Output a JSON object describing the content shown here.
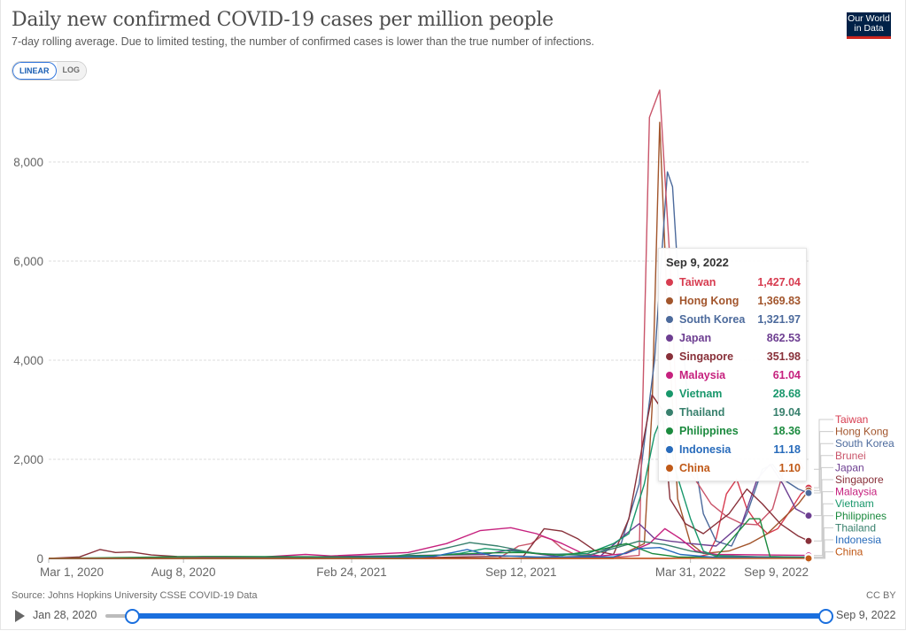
{
  "header": {
    "title": "Daily new confirmed COVID-19 cases per million people",
    "subtitle": "7-day rolling average. Due to limited testing, the number of confirmed cases is lower than the true number of infections.",
    "logo_line1": "Our World",
    "logo_line2": "in Data"
  },
  "scale_toggle": {
    "linear": "LINEAR",
    "log": "LOG",
    "selected": "LINEAR"
  },
  "tooltip": {
    "date": "Sep 9, 2022",
    "rows": [
      {
        "name": "Taiwan",
        "value": "1,427.04",
        "color": "#d73c50"
      },
      {
        "name": "Hong Kong",
        "value": "1,369.83",
        "color": "#a2552c"
      },
      {
        "name": "South Korea",
        "value": "1,321.97",
        "color": "#4c6a9c"
      },
      {
        "name": "Japan",
        "value": "862.53",
        "color": "#6d3e91"
      },
      {
        "name": "Singapore",
        "value": "351.98",
        "color": "#883039"
      },
      {
        "name": "Malaysia",
        "value": "61.04",
        "color": "#c6217e"
      },
      {
        "name": "Vietnam",
        "value": "28.68",
        "color": "#18976b"
      },
      {
        "name": "Thailand",
        "value": "19.04",
        "color": "#38806d"
      },
      {
        "name": "Philippines",
        "value": "18.36",
        "color": "#1b8a3e"
      },
      {
        "name": "Indonesia",
        "value": "11.18",
        "color": "#286bbb"
      },
      {
        "name": "China",
        "value": "1.10",
        "color": "#c05917"
      }
    ]
  },
  "footer": {
    "source": "Source: Johns Hopkins University CSSE COVID-19 Data",
    "license": "CC BY"
  },
  "timeline": {
    "start_label": "Jan 28, 2020",
    "end_label": "Sep 9, 2022",
    "range_start_fraction": 0.035,
    "range_end_fraction": 1.0
  },
  "chart_data": {
    "type": "line",
    "title": "Daily new confirmed COVID-19 cases per million people",
    "subtitle": "7-day rolling average. Due to limited testing, the number of confirmed cases is lower than the true number of infections.",
    "xlabel": "",
    "ylabel": "",
    "x_range": [
      "2020-03-01",
      "2022-09-09"
    ],
    "x_ticks": [
      "Mar 1, 2020",
      "Aug 8, 2020",
      "Feb 24, 2021",
      "Sep 12, 2021",
      "Mar 31, 2022",
      "Sep 9, 2022"
    ],
    "ylim": [
      0,
      9500
    ],
    "y_ticks": [
      0,
      2000,
      4000,
      6000,
      8000
    ],
    "y_tick_labels": [
      "0",
      "2,000",
      "4,000",
      "6,000",
      "8,000"
    ],
    "grid": true,
    "legend_position": "right",
    "x_units": "months since Mar 1, 2020",
    "series": [
      {
        "name": "Taiwan",
        "color": "#d73c50",
        "points": [
          [
            0,
            0
          ],
          [
            14,
            0
          ],
          [
            15,
            15
          ],
          [
            16,
            5
          ],
          [
            24,
            0
          ],
          [
            25,
            10
          ],
          [
            25.7,
            80
          ],
          [
            26,
            400
          ],
          [
            26.4,
            1300
          ],
          [
            26.8,
            1600
          ],
          [
            27.2,
            1000
          ],
          [
            27.6,
            700
          ],
          [
            28,
            500
          ],
          [
            28.4,
            600
          ],
          [
            28.8,
            900
          ],
          [
            29.3,
            1300
          ],
          [
            29.6,
            1427
          ]
        ]
      },
      {
        "name": "Hong Kong",
        "color": "#a2552c",
        "points": [
          [
            0,
            0
          ],
          [
            22,
            0
          ],
          [
            23.2,
            300
          ],
          [
            23.5,
            3000
          ],
          [
            23.8,
            8800
          ],
          [
            24.1,
            5000
          ],
          [
            24.5,
            1200
          ],
          [
            25,
            300
          ],
          [
            25.5,
            100
          ],
          [
            26.5,
            150
          ],
          [
            27.3,
            300
          ],
          [
            28,
            500
          ],
          [
            28.6,
            800
          ],
          [
            29.2,
            1100
          ],
          [
            29.6,
            1370
          ]
        ]
      },
      {
        "name": "South Korea",
        "color": "#4c6a9c",
        "points": [
          [
            0,
            0
          ],
          [
            18,
            5
          ],
          [
            21,
            40
          ],
          [
            22.3,
            300
          ],
          [
            23,
            1500
          ],
          [
            23.6,
            4000
          ],
          [
            24.1,
            7800
          ],
          [
            24.3,
            7500
          ],
          [
            24.6,
            5000
          ],
          [
            25,
            2500
          ],
          [
            25.5,
            900
          ],
          [
            26,
            350
          ],
          [
            26.6,
            250
          ],
          [
            27.2,
            900
          ],
          [
            27.8,
            1800
          ],
          [
            28.2,
            1900
          ],
          [
            28.6,
            1600
          ],
          [
            29.2,
            1400
          ],
          [
            29.6,
            1322
          ]
        ]
      },
      {
        "name": "Brunei",
        "color": "#c9556a",
        "points": [
          [
            0,
            0
          ],
          [
            17.5,
            0
          ],
          [
            18,
            150
          ],
          [
            18.3,
            250
          ],
          [
            18.8,
            300
          ],
          [
            19.2,
            450
          ],
          [
            19.6,
            380
          ],
          [
            20,
            200
          ],
          [
            20.5,
            80
          ],
          [
            21,
            30
          ],
          [
            22,
            20
          ],
          [
            23,
            60
          ],
          [
            23.4,
            8900
          ],
          [
            23.8,
            9450
          ],
          [
            24.2,
            6000
          ],
          [
            24.5,
            2500
          ],
          [
            24.9,
            1800
          ],
          [
            25.3,
            1500
          ],
          [
            25.8,
            1100
          ],
          [
            26.4,
            850
          ],
          [
            27,
            700
          ],
          [
            27.6,
            680
          ],
          [
            28.2,
            1000
          ],
          [
            28.7,
            1900
          ],
          [
            29.1,
            2100
          ],
          [
            29.4,
            1800
          ]
        ]
      },
      {
        "name": "Japan",
        "color": "#6d3e91",
        "points": [
          [
            0,
            0
          ],
          [
            10,
            5
          ],
          [
            11,
            40
          ],
          [
            13,
            50
          ],
          [
            17,
            80
          ],
          [
            18,
            180
          ],
          [
            18.6,
            120
          ],
          [
            20,
            30
          ],
          [
            21.5,
            50
          ],
          [
            22.5,
            500
          ],
          [
            23,
            700
          ],
          [
            23.6,
            400
          ],
          [
            24.2,
            350
          ],
          [
            25,
            300
          ],
          [
            26,
            250
          ],
          [
            27,
            700
          ],
          [
            27.6,
            1600
          ],
          [
            28.1,
            1900
          ],
          [
            28.6,
            1500
          ],
          [
            29.1,
            1000
          ],
          [
            29.6,
            863
          ]
        ]
      },
      {
        "name": "Singapore",
        "color": "#883039",
        "points": [
          [
            0,
            0
          ],
          [
            1.2,
            30
          ],
          [
            2,
            180
          ],
          [
            2.6,
            120
          ],
          [
            3.2,
            130
          ],
          [
            4,
            70
          ],
          [
            5,
            40
          ],
          [
            6,
            30
          ],
          [
            15,
            20
          ],
          [
            18.5,
            50
          ],
          [
            19.3,
            600
          ],
          [
            20,
            550
          ],
          [
            20.6,
            400
          ],
          [
            21.3,
            150
          ],
          [
            22,
            80
          ],
          [
            22.6,
            800
          ],
          [
            23.1,
            2200
          ],
          [
            23.5,
            3300
          ],
          [
            23.9,
            3000
          ],
          [
            24.2,
            1200
          ],
          [
            24.8,
            700
          ],
          [
            25.5,
            500
          ],
          [
            26.5,
            900
          ],
          [
            27.2,
            1400
          ],
          [
            27.8,
            1100
          ],
          [
            28.5,
            700
          ],
          [
            29.2,
            450
          ],
          [
            29.6,
            352
          ]
        ]
      },
      {
        "name": "Malaysia",
        "color": "#c6217e",
        "points": [
          [
            0,
            0
          ],
          [
            8,
            20
          ],
          [
            10,
            80
          ],
          [
            11,
            50
          ],
          [
            14,
            120
          ],
          [
            15.5,
            300
          ],
          [
            16.8,
            560
          ],
          [
            18,
            620
          ],
          [
            19,
            500
          ],
          [
            20,
            300
          ],
          [
            20.8,
            100
          ],
          [
            21.5,
            50
          ],
          [
            22.5,
            100
          ],
          [
            23.4,
            300
          ],
          [
            24,
            600
          ],
          [
            24.6,
            400
          ],
          [
            25.2,
            150
          ],
          [
            26,
            80
          ],
          [
            28,
            70
          ],
          [
            29.6,
            61
          ]
        ]
      },
      {
        "name": "Vietnam",
        "color": "#18976b",
        "points": [
          [
            0,
            0
          ],
          [
            14,
            0
          ],
          [
            16,
            100
          ],
          [
            17,
            200
          ],
          [
            18,
            150
          ],
          [
            19.5,
            80
          ],
          [
            21,
            100
          ],
          [
            22,
            300
          ],
          [
            22.6,
            500
          ],
          [
            23.2,
            1500
          ],
          [
            23.6,
            2500
          ],
          [
            24,
            3000
          ],
          [
            24.4,
            1800
          ],
          [
            25,
            800
          ],
          [
            25.5,
            150
          ],
          [
            26,
            40
          ],
          [
            28.8,
            30
          ],
          [
            29.6,
            29
          ]
        ]
      },
      {
        "name": "Thailand",
        "color": "#38806d",
        "points": [
          [
            0,
            0
          ],
          [
            13,
            10
          ],
          [
            15,
            150
          ],
          [
            16.4,
            320
          ],
          [
            17.5,
            250
          ],
          [
            19,
            100
          ],
          [
            21,
            60
          ],
          [
            22,
            200
          ],
          [
            23,
            350
          ],
          [
            24,
            280
          ],
          [
            25,
            150
          ],
          [
            26,
            60
          ],
          [
            28,
            25
          ],
          [
            29.6,
            19
          ]
        ]
      },
      {
        "name": "Philippines",
        "color": "#1b8a3e",
        "points": [
          [
            0,
            0
          ],
          [
            6,
            40
          ],
          [
            12,
            30
          ],
          [
            15,
            60
          ],
          [
            17,
            110
          ],
          [
            18.5,
            120
          ],
          [
            20,
            60
          ],
          [
            21.5,
            180
          ],
          [
            22.5,
            300
          ],
          [
            23.5,
            100
          ],
          [
            24.5,
            30
          ],
          [
            26,
            25
          ],
          [
            27.3,
            800
          ],
          [
            27.7,
            800
          ],
          [
            28.1,
            40
          ],
          [
            29.6,
            18
          ]
        ]
      },
      {
        "name": "Indonesia",
        "color": "#286bbb",
        "points": [
          [
            0,
            0
          ],
          [
            12,
            10
          ],
          [
            15,
            40
          ],
          [
            16.3,
            180
          ],
          [
            17.2,
            60
          ],
          [
            19,
            30
          ],
          [
            22,
            30
          ],
          [
            23,
            200
          ],
          [
            23.8,
            220
          ],
          [
            24.6,
            80
          ],
          [
            26,
            20
          ],
          [
            29.6,
            11
          ]
        ]
      },
      {
        "name": "China",
        "color": "#c05917",
        "points": [
          [
            0,
            1
          ],
          [
            29.6,
            1.1
          ]
        ]
      }
    ]
  }
}
